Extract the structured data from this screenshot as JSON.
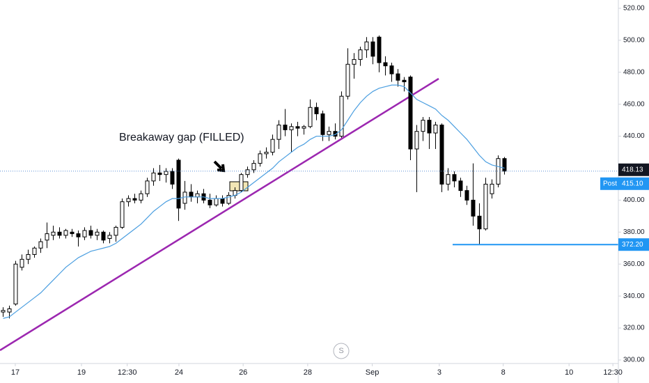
{
  "chart_data": {
    "type": "candlestick",
    "x": [
      0,
      1,
      2,
      3,
      4,
      5,
      6,
      7,
      8,
      9,
      10,
      11,
      12,
      13,
      14,
      15,
      16,
      17,
      18,
      19,
      20,
      21,
      22,
      23,
      24,
      25,
      26,
      27,
      28,
      29,
      30,
      31,
      32,
      33,
      34,
      35,
      36,
      37,
      38,
      39,
      40,
      41,
      42,
      43,
      44,
      45,
      46,
      47,
      48,
      49,
      50,
      51,
      52,
      53,
      54,
      55,
      56,
      57,
      58,
      59,
      60,
      61,
      62,
      63,
      64,
      65,
      66,
      67,
      68,
      69,
      70,
      71,
      72,
      73,
      74,
      75,
      76,
      77,
      78,
      79,
      80
    ],
    "open": [
      330,
      330,
      335,
      358,
      363,
      366,
      370,
      375,
      378,
      380,
      378,
      380,
      379,
      377,
      381,
      378,
      380,
      376,
      378,
      383,
      399,
      401,
      400,
      404,
      412,
      417,
      416,
      418,
      425,
      398,
      405,
      402,
      404,
      400,
      397,
      401,
      398,
      403,
      406,
      416,
      419,
      423,
      429,
      430,
      438,
      447,
      444,
      446,
      445,
      446,
      458,
      454,
      441,
      443,
      440,
      465,
      485,
      488,
      494,
      499,
      502,
      486,
      484,
      479,
      475,
      477,
      432,
      443,
      450,
      442,
      447,
      410,
      416,
      412,
      406,
      400,
      390,
      382,
      404,
      410,
      426
    ],
    "high": [
      333,
      334,
      362,
      366,
      369,
      371,
      376,
      386,
      384,
      383,
      382,
      382,
      381,
      383,
      384,
      382,
      381,
      380,
      384,
      401,
      403,
      404,
      406,
      414,
      420,
      422,
      420,
      420,
      426,
      412,
      410,
      406,
      407,
      404,
      403,
      403,
      405,
      408,
      417,
      421,
      425,
      431,
      433,
      441,
      450,
      457,
      448,
      449,
      447,
      463,
      461,
      456,
      446,
      448,
      468,
      495,
      492,
      496,
      502,
      502,
      503,
      490,
      486,
      482,
      477,
      478,
      447,
      452,
      452,
      449,
      448,
      420,
      418,
      414,
      409,
      423,
      398,
      414,
      413,
      428,
      427
    ],
    "low": [
      327,
      326,
      334,
      356,
      360,
      364,
      367,
      370,
      375,
      376,
      376,
      377,
      371,
      375,
      376,
      375,
      373,
      373,
      374,
      382,
      396,
      398,
      398,
      402,
      409,
      412,
      411,
      407,
      387,
      394,
      399,
      398,
      398,
      395,
      396,
      396,
      397,
      401,
      405,
      414,
      417,
      421,
      426,
      428,
      432,
      440,
      430,
      440,
      441,
      445,
      450,
      437,
      437,
      438,
      439,
      463,
      476,
      484,
      489,
      485,
      480,
      478,
      474,
      471,
      468,
      425,
      405,
      437,
      432,
      432,
      405,
      406,
      408,
      402,
      397,
      384,
      372.2,
      381,
      401,
      408,
      416
    ],
    "close": [
      331,
      332,
      360,
      363,
      366,
      370,
      374,
      379,
      380,
      378,
      381,
      379,
      377,
      381,
      378,
      380,
      375,
      378,
      383,
      399,
      401,
      400,
      404,
      412,
      417,
      416,
      418,
      410,
      395,
      405,
      402,
      404,
      400,
      397,
      401,
      398,
      403,
      406,
      416,
      419,
      423,
      429,
      430,
      438,
      447,
      444,
      446,
      445,
      446,
      458,
      454,
      441,
      443,
      440,
      465,
      485,
      488,
      494,
      499,
      490,
      486,
      484,
      479,
      475,
      474,
      432,
      443,
      450,
      442,
      447,
      410,
      416,
      412,
      406,
      400,
      390,
      382,
      410,
      410,
      426,
      418.13
    ],
    "colors": {
      "up": "#ffffff",
      "down": "#000000"
    },
    "ma": {
      "color": "#4a9ee0",
      "values": [
        326,
        327,
        330,
        333,
        336,
        339,
        342,
        346,
        350,
        354,
        358,
        361,
        364,
        366,
        368,
        369,
        370,
        371,
        373,
        376,
        379,
        382,
        385,
        389,
        393,
        396,
        399,
        401,
        401,
        402,
        402,
        402,
        402,
        401,
        401,
        401,
        402,
        403,
        405,
        408,
        411,
        414,
        417,
        420,
        424,
        427,
        430,
        433,
        435,
        438,
        440,
        440,
        440,
        441,
        444,
        450,
        456,
        461,
        465,
        468,
        470,
        471,
        472,
        472,
        471,
        467,
        463,
        461,
        459,
        457,
        453,
        450,
        446,
        442,
        438,
        433,
        428,
        424,
        422,
        421,
        420
      ]
    },
    "ylim": [
      297.8,
      525.2
    ],
    "yticks": [
      {
        "value": 300,
        "label": "300.00"
      },
      {
        "value": 320,
        "label": "320.00"
      },
      {
        "value": 340,
        "label": "340.00"
      },
      {
        "value": 360,
        "label": "360.00"
      },
      {
        "value": 380,
        "label": "380.00"
      },
      {
        "value": 400,
        "label": "400.00"
      },
      {
        "value": 420,
        "label": "420.00"
      },
      {
        "value": 440,
        "label": "440.00"
      },
      {
        "value": 460,
        "label": "460.00"
      },
      {
        "value": 480,
        "label": "480.00"
      },
      {
        "value": 500,
        "label": "500.00"
      },
      {
        "value": 520,
        "label": "520.00"
      }
    ],
    "xlim": [
      -0.5,
      98.17
    ],
    "xticks": [
      {
        "value": 1.94,
        "label": "17"
      },
      {
        "value": 12.5,
        "label": "19"
      },
      {
        "value": 19.8,
        "label": "12:30"
      },
      {
        "value": 28.05,
        "label": "24"
      },
      {
        "value": 38.3,
        "label": "26"
      },
      {
        "value": 48.6,
        "label": "28"
      },
      {
        "value": 58.9,
        "label": "Sep"
      },
      {
        "value": 69.6,
        "label": "3"
      },
      {
        "value": 79.8,
        "label": "8"
      },
      {
        "value": 90.3,
        "label": "10"
      },
      {
        "value": 97.3,
        "label": "12:30"
      }
    ],
    "last_price": {
      "value": 418.13,
      "label": "418.13",
      "color": "#131722"
    },
    "post": {
      "name": "Post",
      "value": 415.1,
      "label": "415.10",
      "color": "#2196f3"
    },
    "level": {
      "value": 372.2,
      "label": "372.20",
      "color": "#2196f3"
    },
    "annotation": "Breakaway gap (FILLED)",
    "watermark": "S"
  }
}
